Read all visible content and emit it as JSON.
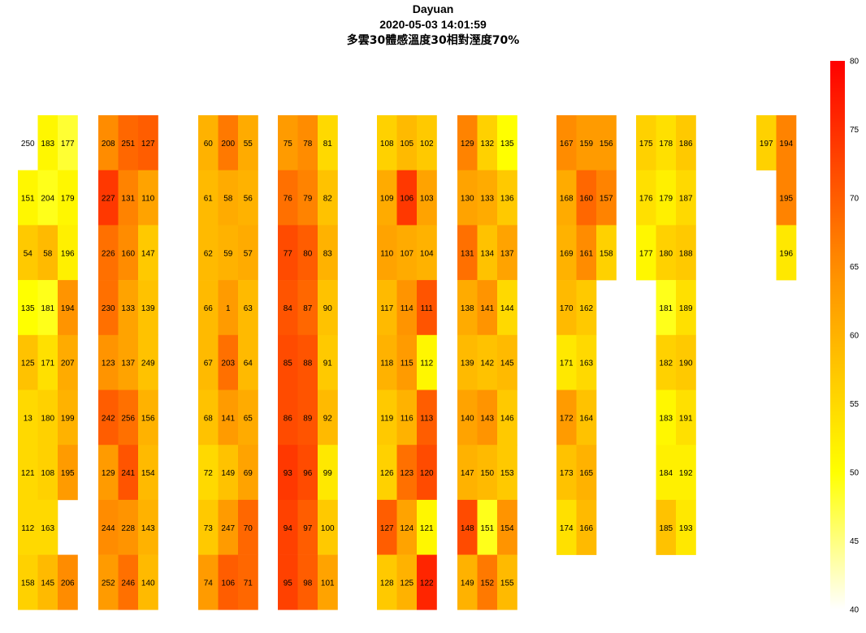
{
  "chart_data": {
    "type": "heatmap",
    "title": "Dayuan",
    "subtitle": "2020-05-03 14:01:59",
    "subtitle2": "多雲30體感溫度30相對溼度70%",
    "colorbar": {
      "min": 40,
      "max": 80,
      "ticks": [
        80,
        75,
        70,
        65,
        60,
        55,
        50,
        45,
        40
      ],
      "colors": [
        "#ffffff",
        "#ffff00",
        "#ff8c00",
        "#ff0000"
      ]
    },
    "rows": 9,
    "columns": [
      [
        [
          250,
          null
        ],
        [
          183,
          51
        ],
        [
          177,
          48
        ]
      ],
      [
        [
          151,
          51
        ],
        [
          204,
          49
        ],
        [
          179,
          51
        ]
      ],
      [
        [
          54,
          57
        ],
        [
          58,
          59
        ],
        [
          196,
          52
        ]
      ],
      [
        [
          135,
          50
        ],
        [
          181,
          49
        ],
        [
          194,
          64
        ]
      ],
      [
        [
          125,
          58
        ],
        [
          171,
          54
        ],
        [
          207,
          61
        ]
      ],
      [
        [
          13,
          55
        ],
        [
          180,
          56
        ],
        [
          199,
          60
        ]
      ],
      [
        [
          121,
          55
        ],
        [
          108,
          56
        ],
        [
          195,
          63
        ]
      ],
      [
        [
          112,
          55
        ],
        [
          163,
          55
        ],
        [
          null,
          null
        ]
      ],
      [
        [
          158,
          56
        ],
        [
          145,
          59
        ],
        [
          206,
          65
        ]
      ],
      [
        [
          208,
          65
        ],
        [
          251,
          69
        ],
        [
          127,
          70
        ]
      ],
      [
        [
          227,
          74
        ],
        [
          131,
          66
        ],
        [
          110,
          62
        ]
      ],
      [
        [
          226,
          68
        ],
        [
          160,
          65
        ],
        [
          147,
          57
        ]
      ],
      [
        [
          230,
          68
        ],
        [
          133,
          62
        ],
        [
          139,
          58
        ]
      ],
      [
        [
          123,
          64
        ],
        [
          137,
          62
        ],
        [
          249,
          58
        ]
      ],
      [
        [
          242,
          70
        ],
        [
          256,
          68
        ],
        [
          156,
          60
        ]
      ],
      [
        [
          129,
          63
        ],
        [
          241,
          71
        ],
        [
          154,
          59
        ]
      ],
      [
        [
          244,
          65
        ],
        [
          228,
          64
        ],
        [
          143,
          60
        ]
      ],
      [
        [
          252,
          63
        ],
        [
          246,
          68
        ],
        [
          140,
          59
        ]
      ],
      [
        [
          60,
          60
        ],
        [
          200,
          67
        ],
        [
          55,
          61
        ]
      ],
      [
        [
          61,
          59
        ],
        [
          58,
          61
        ],
        [
          56,
          60
        ]
      ],
      [
        [
          62,
          59
        ],
        [
          59,
          60
        ],
        [
          57,
          61
        ]
      ],
      [
        [
          66,
          59
        ],
        [
          1,
          63
        ],
        [
          63,
          59
        ]
      ],
      [
        [
          67,
          59
        ],
        [
          203,
          68
        ],
        [
          64,
          59
        ]
      ],
      [
        [
          68,
          58
        ],
        [
          141,
          63
        ],
        [
          65,
          61
        ]
      ],
      [
        [
          72,
          55
        ],
        [
          149,
          58
        ],
        [
          69,
          62
        ]
      ],
      [
        [
          73,
          57
        ],
        [
          247,
          63
        ],
        [
          70,
          69
        ]
      ],
      [
        [
          74,
          63
        ],
        [
          106,
          70
        ],
        [
          71,
          69
        ]
      ],
      [
        [
          75,
          63
        ],
        [
          78,
          65
        ],
        [
          81,
          55
        ]
      ],
      [
        [
          76,
          68
        ],
        [
          79,
          66
        ],
        [
          82,
          58
        ]
      ],
      [
        [
          77,
          72
        ],
        [
          80,
          70
        ],
        [
          83,
          60
        ]
      ],
      [
        [
          84,
          71
        ],
        [
          87,
          69
        ],
        [
          90,
          58
        ]
      ],
      [
        [
          85,
          72
        ],
        [
          88,
          71
        ],
        [
          91,
          57
        ]
      ],
      [
        [
          86,
          72
        ],
        [
          89,
          71
        ],
        [
          92,
          59
        ]
      ],
      [
        [
          93,
          74
        ],
        [
          96,
          72
        ],
        [
          99,
          53
        ]
      ],
      [
        [
          94,
          73
        ],
        [
          97,
          70
        ],
        [
          100,
          57
        ]
      ],
      [
        [
          95,
          73
        ],
        [
          98,
          70
        ],
        [
          101,
          62
        ]
      ],
      [
        [
          108,
          56
        ],
        [
          105,
          59
        ],
        [
          102,
          57
        ]
      ],
      [
        [
          109,
          61
        ],
        [
          106,
          74
        ],
        [
          103,
          62
        ]
      ],
      [
        [
          110,
          62
        ],
        [
          107,
          61
        ],
        [
          104,
          60
        ]
      ],
      [
        [
          117,
          59
        ],
        [
          114,
          64
        ],
        [
          111,
          71
        ]
      ],
      [
        [
          118,
          60
        ],
        [
          115,
          63
        ],
        [
          112,
          51
        ]
      ],
      [
        [
          119,
          57
        ],
        [
          116,
          60
        ],
        [
          113,
          70
        ]
      ],
      [
        [
          126,
          56
        ],
        [
          123,
          68
        ],
        [
          120,
          72
        ]
      ],
      [
        [
          127,
          70
        ],
        [
          124,
          62
        ],
        [
          121,
          51
        ]
      ],
      [
        [
          128,
          57
        ],
        [
          125,
          60
        ],
        [
          122,
          76
        ]
      ],
      [
        [
          129,
          66
        ],
        [
          132,
          56
        ],
        [
          135,
          50
        ]
      ],
      [
        [
          130,
          62
        ],
        [
          133,
          61
        ],
        [
          136,
          57
        ]
      ],
      [
        [
          131,
          68
        ],
        [
          134,
          58
        ],
        [
          137,
          62
        ]
      ],
      [
        [
          138,
          61
        ],
        [
          141,
          64
        ],
        [
          144,
          55
        ]
      ],
      [
        [
          139,
          59
        ],
        [
          142,
          58
        ],
        [
          145,
          59
        ]
      ],
      [
        [
          140,
          62
        ],
        [
          143,
          64
        ],
        [
          146,
          57
        ]
      ],
      [
        [
          147,
          60
        ],
        [
          150,
          59
        ],
        [
          153,
          57
        ]
      ],
      [
        [
          148,
          72
        ],
        [
          151,
          49
        ],
        [
          154,
          64
        ]
      ],
      [
        [
          149,
          60
        ],
        [
          152,
          67
        ],
        [
          155,
          59
        ]
      ],
      [
        [
          167,
          65
        ],
        [
          159,
          63
        ],
        [
          156,
          63
        ]
      ],
      [
        [
          168,
          61
        ],
        [
          160,
          69
        ],
        [
          157,
          66
        ]
      ],
      [
        [
          169,
          60
        ],
        [
          161,
          65
        ],
        [
          158,
          56
        ]
      ],
      [
        [
          170,
          59
        ],
        [
          162,
          57
        ],
        [
          null,
          null
        ]
      ],
      [
        [
          171,
          53
        ],
        [
          163,
          55
        ],
        [
          null,
          null
        ]
      ],
      [
        [
          172,
          63
        ],
        [
          164,
          58
        ],
        [
          null,
          null
        ]
      ],
      [
        [
          173,
          58
        ],
        [
          165,
          60
        ],
        [
          null,
          null
        ]
      ],
      [
        [
          174,
          54
        ],
        [
          166,
          59
        ],
        [
          null,
          null
        ]
      ],
      [
        [
          null,
          null
        ],
        [
          null,
          null
        ],
        [
          null,
          null
        ]
      ],
      [
        [
          175,
          56
        ],
        [
          178,
          54
        ],
        [
          186,
          57
        ]
      ],
      [
        [
          176,
          54
        ],
        [
          179,
          52
        ],
        [
          187,
          55
        ]
      ],
      [
        [
          177,
          51
        ],
        [
          180,
          56
        ],
        [
          188,
          57
        ]
      ],
      [
        [
          null,
          null
        ],
        [
          181,
          49
        ],
        [
          189,
          54
        ]
      ],
      [
        [
          null,
          null
        ],
        [
          182,
          56
        ],
        [
          190,
          57
        ]
      ],
      [
        [
          null,
          null
        ],
        [
          183,
          51
        ],
        [
          191,
          54
        ]
      ],
      [
        [
          null,
          null
        ],
        [
          184,
          52
        ],
        [
          192,
          52
        ]
      ],
      [
        [
          null,
          null
        ],
        [
          185,
          58
        ],
        [
          193,
          53
        ]
      ],
      [
        [
          null,
          null
        ],
        [
          null,
          null
        ],
        [
          null,
          null
        ]
      ],
      [
        [
          197,
          56
        ],
        [
          194,
          66
        ]
      ],
      [
        [
          null,
          null
        ],
        [
          195,
          66
        ]
      ],
      [
        [
          null,
          null
        ],
        [
          196,
          53
        ]
      ],
      [
        [
          null,
          null
        ],
        [
          null,
          null
        ]
      ],
      [
        [
          null,
          null
        ],
        [
          null,
          null
        ]
      ],
      [
        [
          null,
          null
        ],
        [
          null,
          null
        ]
      ],
      [
        [
          null,
          null
        ],
        [
          null,
          null
        ]
      ],
      [
        [
          null,
          null
        ],
        [
          null,
          null
        ]
      ],
      [
        [
          null,
          null
        ],
        [
          null,
          null
        ]
      ]
    ]
  }
}
